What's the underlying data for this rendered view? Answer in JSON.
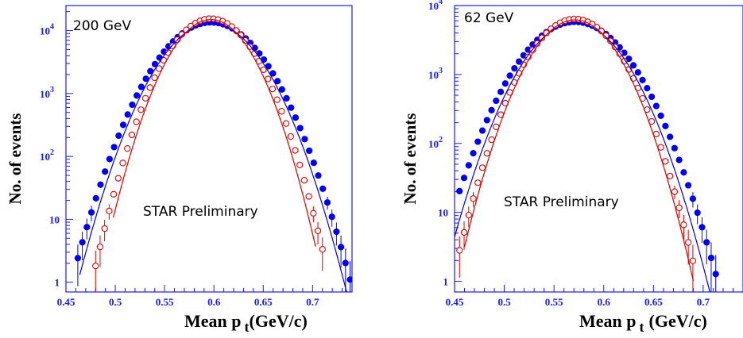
{
  "chart_data": [
    {
      "type": "scatter",
      "panel_label": "200 GeV",
      "annotation": "STAR Preliminary",
      "ylabel": "No. of events",
      "xlabel": "Mean p",
      "xlabel_sub": "t",
      "xlabel_units": "(GeV/c)",
      "xlim": [
        0.45,
        0.74
      ],
      "ylim": [
        0.7,
        25000
      ],
      "yscale": "log",
      "x_ticks": [
        "0.45",
        "0.5",
        "0.55",
        "0.6",
        "0.65",
        "0.7"
      ],
      "x_tick_values": [
        0.45,
        0.5,
        0.55,
        0.6,
        0.65,
        0.7
      ],
      "y_ticks": [
        {
          "value": 1,
          "base": "1",
          "exp": ""
        },
        {
          "value": 10,
          "base": "10",
          "exp": ""
        },
        {
          "value": 100,
          "base": "10",
          "exp": "2"
        },
        {
          "value": 1000,
          "base": "10",
          "exp": "3"
        },
        {
          "value": 10000,
          "base": "10",
          "exp": "4"
        }
      ],
      "series": [
        {
          "marker": "filled-circle",
          "color": "#0000ee",
          "mean": 0.597,
          "sigma": 0.0325,
          "peak": 13500,
          "xstart": 0.462,
          "xend": 0.738,
          "step": 0.0046,
          "err_below": 20
        },
        {
          "marker": "open-circle",
          "color": "#dd0000",
          "mean": 0.597,
          "sigma": 0.0275,
          "peak": 15500,
          "xstart": 0.48,
          "xend": 0.712,
          "step": 0.0046,
          "err_below": 20
        },
        {
          "marker": "line",
          "color": "#0000ee",
          "mean": 0.597,
          "sigma": 0.031,
          "peak": 13000,
          "xstart": 0.464,
          "xend": 0.74
        },
        {
          "marker": "line",
          "color": "#dd0000",
          "mean": 0.597,
          "sigma": 0.026,
          "peak": 15000,
          "xstart": 0.498,
          "xend": 0.703
        }
      ]
    },
    {
      "type": "scatter",
      "panel_label": "62 GeV",
      "annotation": "STAR Preliminary",
      "ylabel": "No. of events",
      "xlabel": "Mean p",
      "xlabel_sub": "t",
      "xlabel_units": "(GeV/c)",
      "xlim": [
        0.45,
        0.74
      ],
      "ylim": [
        0.7,
        10000
      ],
      "yscale": "log",
      "x_ticks": [
        "0.45",
        "0.5",
        "0.55",
        "0.6",
        "0.65",
        "0.7"
      ],
      "x_tick_values": [
        0.45,
        0.5,
        0.55,
        0.6,
        0.65,
        0.7
      ],
      "y_ticks": [
        {
          "value": 1,
          "base": "1",
          "exp": ""
        },
        {
          "value": 10,
          "base": "10",
          "exp": ""
        },
        {
          "value": 100,
          "base": "10",
          "exp": "2"
        },
        {
          "value": 1000,
          "base": "10",
          "exp": "3"
        },
        {
          "value": 10000,
          "base": "10",
          "exp": "4"
        }
      ],
      "series": [
        {
          "marker": "filled-circle",
          "color": "#0000ee",
          "mean": 0.571,
          "sigma": 0.0345,
          "peak": 5800,
          "xstart": 0.455,
          "xend": 0.738,
          "step": 0.0046,
          "err_below": 20
        },
        {
          "marker": "open-circle",
          "color": "#dd0000",
          "mean": 0.571,
          "sigma": 0.0295,
          "peak": 6400,
          "xstart": 0.455,
          "xend": 0.69,
          "step": 0.0046,
          "err_below": 20
        },
        {
          "marker": "line",
          "color": "#0000ee",
          "mean": 0.571,
          "sigma": 0.032,
          "peak": 5600,
          "xstart": 0.45,
          "xend": 0.715
        },
        {
          "marker": "line",
          "color": "#dd0000",
          "mean": 0.571,
          "sigma": 0.0285,
          "peak": 6200,
          "xstart": 0.46,
          "xend": 0.69
        }
      ]
    }
  ]
}
